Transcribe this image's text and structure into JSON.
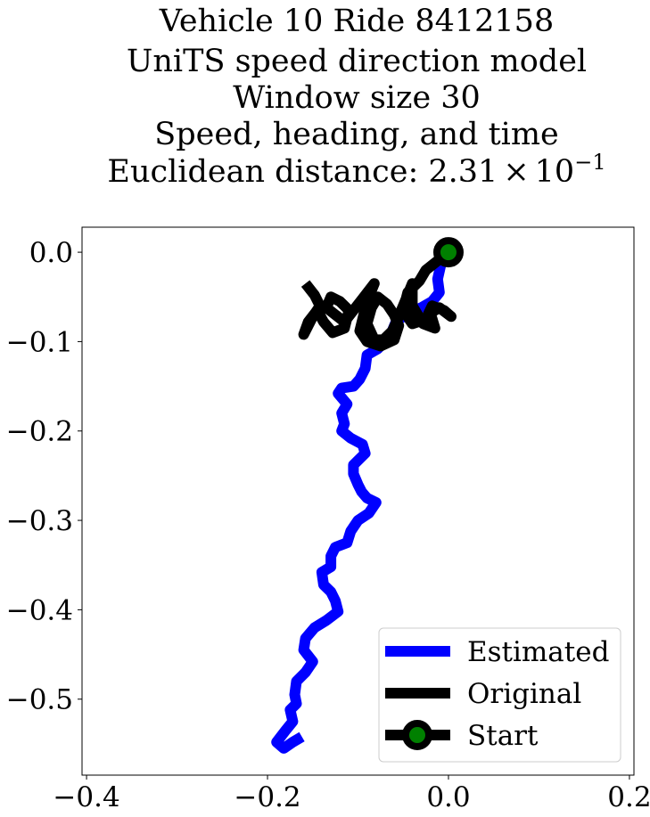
{
  "chart_data": {
    "type": "line",
    "title_lines": [
      "Vehicle 10 Ride 8412158",
      "UniTS speed direction model",
      "Window size 30",
      "Speed, heading, and time"
    ],
    "title_metric_prefix": "Euclidean distance: ",
    "title_metric_mantissa": "2.31",
    "title_metric_times": "×",
    "title_metric_base": "10",
    "title_metric_exponent": "−1",
    "xlim": [
      -0.405,
      0.205
    ],
    "ylim": [
      -0.585,
      0.028
    ],
    "x_ticks": [
      {
        "value": -0.4,
        "label": "−0.4"
      },
      {
        "value": -0.2,
        "label": "−0.2"
      },
      {
        "value": 0.0,
        "label": "0.0"
      },
      {
        "value": 0.2,
        "label": "0.2"
      }
    ],
    "y_ticks": [
      {
        "value": 0.0,
        "label": "0.0"
      },
      {
        "value": -0.1,
        "label": "−0.1"
      },
      {
        "value": -0.2,
        "label": "−0.2"
      },
      {
        "value": -0.3,
        "label": "−0.3"
      },
      {
        "value": -0.4,
        "label": "−0.4"
      },
      {
        "value": -0.5,
        "label": "−0.5"
      }
    ],
    "grid": false,
    "legend_position": "lower-right",
    "series": [
      {
        "name": "Estimated",
        "color": "#0000ff",
        "points": [
          [
            0.0,
            0.0
          ],
          [
            -0.008,
            -0.012
          ],
          [
            -0.012,
            -0.03
          ],
          [
            -0.01,
            -0.045
          ],
          [
            -0.018,
            -0.055
          ],
          [
            -0.03,
            -0.062
          ],
          [
            -0.045,
            -0.068
          ],
          [
            -0.058,
            -0.078
          ],
          [
            -0.065,
            -0.095
          ],
          [
            -0.078,
            -0.108
          ],
          [
            -0.09,
            -0.115
          ],
          [
            -0.092,
            -0.13
          ],
          [
            -0.098,
            -0.142
          ],
          [
            -0.105,
            -0.15
          ],
          [
            -0.118,
            -0.152
          ],
          [
            -0.122,
            -0.158
          ],
          [
            -0.112,
            -0.17
          ],
          [
            -0.118,
            -0.18
          ],
          [
            -0.115,
            -0.192
          ],
          [
            -0.118,
            -0.2
          ],
          [
            -0.108,
            -0.208
          ],
          [
            -0.095,
            -0.215
          ],
          [
            -0.092,
            -0.225
          ],
          [
            -0.105,
            -0.238
          ],
          [
            -0.105,
            -0.248
          ],
          [
            -0.1,
            -0.26
          ],
          [
            -0.096,
            -0.268
          ],
          [
            -0.09,
            -0.275
          ],
          [
            -0.08,
            -0.28
          ],
          [
            -0.088,
            -0.292
          ],
          [
            -0.1,
            -0.3
          ],
          [
            -0.108,
            -0.312
          ],
          [
            -0.112,
            -0.325
          ],
          [
            -0.125,
            -0.33
          ],
          [
            -0.13,
            -0.34
          ],
          [
            -0.13,
            -0.352
          ],
          [
            -0.14,
            -0.358
          ],
          [
            -0.138,
            -0.372
          ],
          [
            -0.13,
            -0.38
          ],
          [
            -0.125,
            -0.39
          ],
          [
            -0.122,
            -0.402
          ],
          [
            -0.135,
            -0.412
          ],
          [
            -0.148,
            -0.42
          ],
          [
            -0.158,
            -0.432
          ],
          [
            -0.16,
            -0.445
          ],
          [
            -0.15,
            -0.458
          ],
          [
            -0.158,
            -0.47
          ],
          [
            -0.168,
            -0.48
          ],
          [
            -0.17,
            -0.495
          ],
          [
            -0.168,
            -0.505
          ],
          [
            -0.175,
            -0.512
          ],
          [
            -0.172,
            -0.525
          ],
          [
            -0.18,
            -0.535
          ],
          [
            -0.19,
            -0.548
          ],
          [
            -0.182,
            -0.555
          ],
          [
            -0.172,
            -0.548
          ],
          [
            -0.162,
            -0.542
          ]
        ]
      },
      {
        "name": "Original",
        "color": "#000000",
        "points": [
          [
            0.0,
            0.0
          ],
          [
            -0.015,
            -0.012
          ],
          [
            -0.025,
            -0.02
          ],
          [
            -0.032,
            -0.032
          ],
          [
            -0.045,
            -0.045
          ],
          [
            -0.05,
            -0.065
          ],
          [
            -0.04,
            -0.08
          ],
          [
            -0.025,
            -0.075
          ],
          [
            -0.018,
            -0.06
          ],
          [
            -0.005,
            -0.065
          ],
          [
            0.003,
            -0.072
          ],
          [
            -0.01,
            -0.062
          ],
          [
            -0.02,
            -0.068
          ],
          [
            -0.015,
            -0.085
          ],
          [
            -0.028,
            -0.08
          ],
          [
            -0.04,
            -0.06
          ],
          [
            -0.04,
            -0.035
          ],
          [
            -0.048,
            -0.055
          ],
          [
            -0.055,
            -0.072
          ],
          [
            -0.062,
            -0.088
          ],
          [
            -0.072,
            -0.098
          ],
          [
            -0.082,
            -0.098
          ],
          [
            -0.09,
            -0.08
          ],
          [
            -0.085,
            -0.062
          ],
          [
            -0.078,
            -0.05
          ],
          [
            -0.068,
            -0.058
          ],
          [
            -0.06,
            -0.07
          ],
          [
            -0.055,
            -0.082
          ],
          [
            -0.06,
            -0.098
          ],
          [
            -0.075,
            -0.105
          ],
          [
            -0.09,
            -0.1
          ],
          [
            -0.098,
            -0.088
          ],
          [
            -0.09,
            -0.055
          ],
          [
            -0.082,
            -0.035
          ],
          [
            -0.095,
            -0.052
          ],
          [
            -0.105,
            -0.065
          ],
          [
            -0.115,
            -0.078
          ],
          [
            -0.125,
            -0.07
          ],
          [
            -0.135,
            -0.062
          ],
          [
            -0.13,
            -0.05
          ],
          [
            -0.12,
            -0.055
          ],
          [
            -0.11,
            -0.065
          ],
          [
            -0.115,
            -0.085
          ],
          [
            -0.128,
            -0.09
          ],
          [
            -0.138,
            -0.078
          ],
          [
            -0.145,
            -0.065
          ],
          [
            -0.155,
            -0.078
          ],
          [
            -0.16,
            -0.092
          ],
          [
            -0.15,
            -0.072
          ],
          [
            -0.142,
            -0.06
          ],
          [
            -0.148,
            -0.048
          ],
          [
            -0.158,
            -0.035
          ]
        ]
      }
    ],
    "start_marker": {
      "label": "Start",
      "x": 0.0,
      "y": 0.0,
      "edge_color": "#000000",
      "face_color": "#008000"
    },
    "legend": {
      "entries": [
        {
          "label": "Estimated",
          "color": "#0000ff",
          "marker": false
        },
        {
          "label": "Original",
          "color": "#000000",
          "marker": false
        },
        {
          "label": "Start",
          "color": "#000000",
          "marker": true,
          "marker_face": "#008000"
        }
      ]
    }
  }
}
